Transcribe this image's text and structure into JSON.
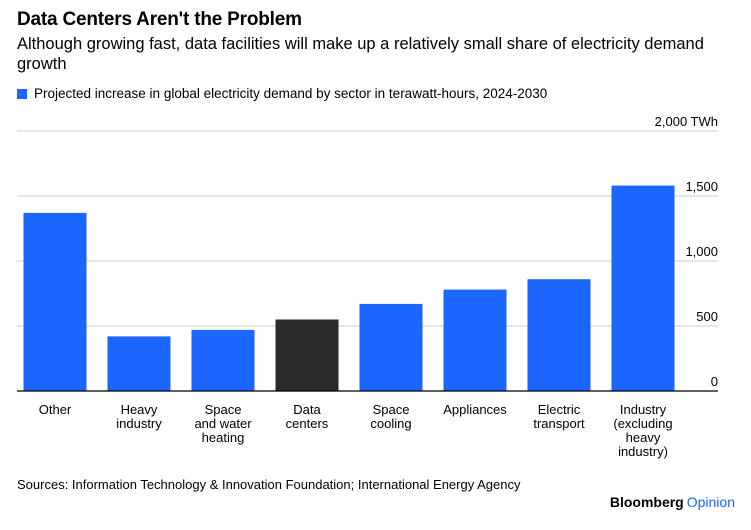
{
  "header": {
    "title": "Data Centers Aren't the Problem",
    "subtitle": "Although growing fast, data facilities will make up a relatively small share of electricity demand growth"
  },
  "legend": {
    "label": "Projected increase in global electricity demand by sector in terawatt-hours, 2024-2030",
    "color": "#1a66ff"
  },
  "footer": {
    "source": "Sources: Information Technology & Innovation Foundation; International Energy Agency",
    "brand": "Bloomberg",
    "brand_accent": "Opinion"
  },
  "chart_data": {
    "type": "bar",
    "categories": [
      [
        "Other"
      ],
      [
        "Heavy",
        "industry"
      ],
      [
        "Space",
        "and water",
        "heating"
      ],
      [
        "Data",
        "centers"
      ],
      [
        "Space",
        "cooling"
      ],
      [
        "Appliances"
      ],
      [
        "Electric",
        "transport"
      ],
      [
        "Industry",
        "(excluding",
        "heavy",
        "industry)"
      ]
    ],
    "values": [
      1370,
      420,
      470,
      550,
      670,
      780,
      860,
      1580
    ],
    "highlight_index": 3,
    "colors": {
      "bar": "#1a66ff",
      "highlight": "#2a2a2a",
      "grid": "#cccccc",
      "axis": "#000000"
    },
    "ylim": [
      0,
      2000
    ],
    "yticks": [
      {
        "value": 0,
        "label": "0"
      },
      {
        "value": 500,
        "label": "500"
      },
      {
        "value": 1000,
        "label": "1,000"
      },
      {
        "value": 1500,
        "label": "1,500"
      },
      {
        "value": 2000,
        "label": "2,000 TWh"
      }
    ],
    "grid": true,
    "y_axis_side": "right"
  }
}
